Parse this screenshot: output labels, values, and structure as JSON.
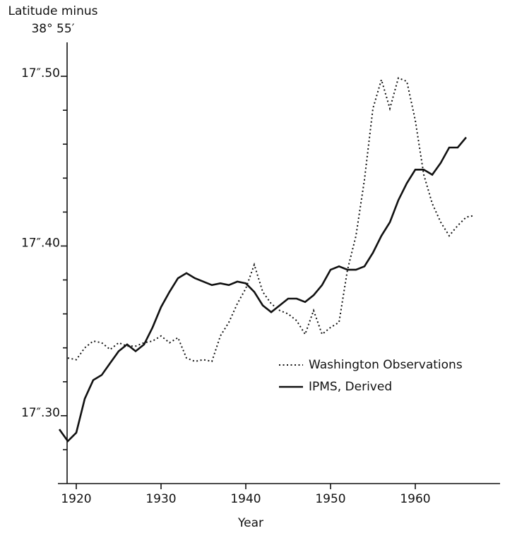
{
  "chart_data": {
    "type": "line",
    "y_label": [
      "Latitude minus",
      "38° 55′"
    ],
    "x_label": "Year",
    "x": [
      1918,
      1919,
      1920,
      1921,
      1922,
      1923,
      1924,
      1925,
      1926,
      1927,
      1928,
      1929,
      1930,
      1931,
      1932,
      1933,
      1934,
      1935,
      1936,
      1937,
      1938,
      1939,
      1940,
      1941,
      1942,
      1943,
      1944,
      1945,
      1946,
      1947,
      1948,
      1949,
      1950,
      1951,
      1952,
      1953,
      1954,
      1955,
      1956,
      1957,
      1958,
      1959,
      1960,
      1961,
      1962,
      1963,
      1964,
      1965,
      1966,
      1967
    ],
    "series": [
      {
        "name": "Washington Observations",
        "color": "#111111",
        "dash": "dotted",
        "values": [
          null,
          17.334,
          17.333,
          17.34,
          17.344,
          17.343,
          17.339,
          17.343,
          17.341,
          17.341,
          17.343,
          17.344,
          17.347,
          17.343,
          17.346,
          17.334,
          17.332,
          17.333,
          17.332,
          17.347,
          17.355,
          17.366,
          17.375,
          17.389,
          17.373,
          17.366,
          17.362,
          17.36,
          17.356,
          17.348,
          17.362,
          17.348,
          17.352,
          17.355,
          17.386,
          17.406,
          17.439,
          17.481,
          17.498,
          17.481,
          17.499,
          17.497,
          17.474,
          17.442,
          17.425,
          17.414,
          17.406,
          17.412,
          17.417,
          17.418
        ]
      },
      {
        "name": "IPMS, Derived",
        "color": "#111111",
        "dash": "solid",
        "values": [
          17.292,
          17.285,
          17.29,
          17.31,
          17.321,
          17.324,
          17.331,
          17.338,
          17.342,
          17.338,
          17.342,
          17.352,
          17.364,
          17.373,
          17.381,
          17.384,
          17.381,
          17.379,
          17.377,
          17.378,
          17.377,
          17.379,
          17.378,
          17.373,
          17.365,
          17.361,
          17.365,
          17.369,
          17.369,
          17.367,
          17.371,
          17.377,
          17.386,
          17.388,
          17.386,
          17.386,
          17.388,
          17.396,
          17.406,
          17.414,
          17.427,
          17.437,
          17.445,
          17.445,
          17.442,
          17.449,
          17.458,
          17.458,
          17.464,
          null
        ]
      }
    ],
    "xlim": [
      1918,
      1970
    ],
    "xticks": [
      1920,
      1930,
      1940,
      1950,
      1960
    ],
    "ylim": [
      17.26,
      17.52
    ],
    "yticks": [
      {
        "value": 17.3,
        "label": "17″.30"
      },
      {
        "value": 17.4,
        "label": "17″.40"
      },
      {
        "value": 17.5,
        "label": "17″.50"
      }
    ],
    "yminor_ticks": [
      17.28,
      17.32,
      17.34,
      17.36,
      17.38,
      17.42,
      17.44,
      17.46,
      17.48
    ],
    "legend": "center-right"
  }
}
